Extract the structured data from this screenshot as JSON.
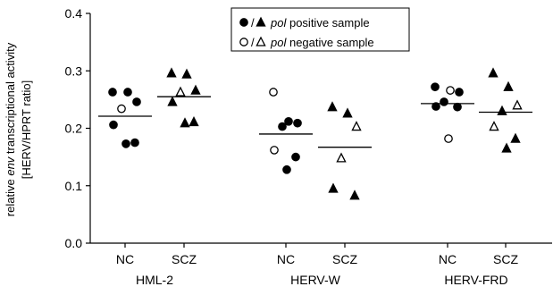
{
  "chart_data": {
    "type": "scatter",
    "ylabel_line1_pre": "relative ",
    "ylabel_line1_italic": "env",
    "ylabel_line1_post": " transcriptional activity",
    "ylabel_line2": "[HERV/HPRT ratio]",
    "ylim": [
      0,
      0.4
    ],
    "yticks": [
      "0.0",
      "0.1",
      "0.2",
      "0.3",
      "0.4"
    ],
    "ytick_values": [
      0.0,
      0.1,
      0.2,
      0.3,
      0.4
    ],
    "grid": false,
    "legend_position": "top-center",
    "legend": [
      {
        "filled": true,
        "italic": "pol",
        "rest": " positive sample"
      },
      {
        "filled": false,
        "italic": "pol",
        "rest": " negative sample"
      }
    ],
    "groups": [
      {
        "label": "HML-2",
        "series": [
          {
            "label": "NC",
            "marker": "circle",
            "mean": 0.221,
            "points": [
              {
                "y": 0.263,
                "filled": true
              },
              {
                "y": 0.263,
                "filled": true
              },
              {
                "y": 0.246,
                "filled": true
              },
              {
                "y": 0.234,
                "filled": false
              },
              {
                "y": 0.206,
                "filled": true
              },
              {
                "y": 0.175,
                "filled": true
              },
              {
                "y": 0.173,
                "filled": true
              }
            ]
          },
          {
            "label": "SCZ",
            "marker": "triangle",
            "mean": 0.255,
            "points": [
              {
                "y": 0.296,
                "filled": true
              },
              {
                "y": 0.294,
                "filled": true
              },
              {
                "y": 0.266,
                "filled": true
              },
              {
                "y": 0.263,
                "filled": false
              },
              {
                "y": 0.246,
                "filled": true
              },
              {
                "y": 0.211,
                "filled": true
              },
              {
                "y": 0.209,
                "filled": true
              }
            ]
          }
        ]
      },
      {
        "label": "HERV-W",
        "series": [
          {
            "label": "NC",
            "marker": "circle",
            "mean": 0.19,
            "points": [
              {
                "y": 0.263,
                "filled": false
              },
              {
                "y": 0.212,
                "filled": true
              },
              {
                "y": 0.209,
                "filled": true
              },
              {
                "y": 0.203,
                "filled": true
              },
              {
                "y": 0.162,
                "filled": false
              },
              {
                "y": 0.15,
                "filled": true
              },
              {
                "y": 0.128,
                "filled": true
              }
            ]
          },
          {
            "label": "SCZ",
            "marker": "triangle",
            "mean": 0.167,
            "points": [
              {
                "y": 0.237,
                "filled": true
              },
              {
                "y": 0.226,
                "filled": true
              },
              {
                "y": 0.203,
                "filled": false
              },
              {
                "y": 0.148,
                "filled": false
              },
              {
                "y": 0.095,
                "filled": true
              },
              {
                "y": 0.083,
                "filled": true
              }
            ]
          }
        ]
      },
      {
        "label": "HERV-FRD",
        "series": [
          {
            "label": "NC",
            "marker": "circle",
            "mean": 0.243,
            "points": [
              {
                "y": 0.272,
                "filled": true
              },
              {
                "y": 0.266,
                "filled": false
              },
              {
                "y": 0.263,
                "filled": true
              },
              {
                "y": 0.246,
                "filled": true
              },
              {
                "y": 0.238,
                "filled": true
              },
              {
                "y": 0.237,
                "filled": true
              },
              {
                "y": 0.182,
                "filled": false
              }
            ]
          },
          {
            "label": "SCZ",
            "marker": "triangle",
            "mean": 0.228,
            "points": [
              {
                "y": 0.296,
                "filled": true
              },
              {
                "y": 0.272,
                "filled": true
              },
              {
                "y": 0.24,
                "filled": false
              },
              {
                "y": 0.23,
                "filled": true
              },
              {
                "y": 0.203,
                "filled": false
              },
              {
                "y": 0.182,
                "filled": true
              },
              {
                "y": 0.165,
                "filled": true
              }
            ]
          }
        ]
      }
    ]
  }
}
